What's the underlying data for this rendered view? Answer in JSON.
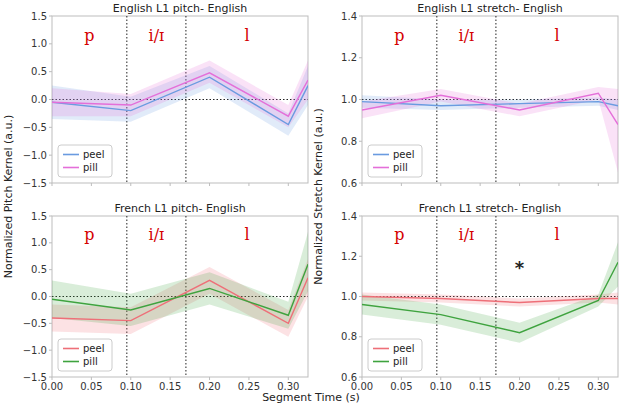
{
  "chart_data": [
    {
      "type": "line",
      "title": "English L1 pitch- English",
      "ylabel": "Normalized Pitch Kernel (a.u.)",
      "x": [
        0,
        0.1,
        0.2,
        0.3,
        0.325
      ],
      "xlim": [
        0,
        0.325
      ],
      "xticks": [
        {
          "value": 0,
          "label": "0.00"
        },
        0.05,
        {
          "value": 0.1,
          "label": "0.10"
        },
        0.15,
        {
          "value": 0.2,
          "label": "0.20"
        },
        0.25,
        {
          "value": 0.3,
          "label": "0.30"
        }
      ],
      "ylim": [
        -1.5,
        1.5
      ],
      "yticks": [
        {
          "value": -1.5,
          "label": "−1.5"
        },
        {
          "value": -1,
          "label": "−1.0"
        },
        {
          "value": -0.5,
          "label": "−0.5"
        },
        {
          "value": 0,
          "label": "0.0"
        },
        0.5,
        {
          "value": 1,
          "label": "1.0"
        },
        1.5
      ],
      "tick_labels": "y",
      "grid": false,
      "legend": "lower left",
      "reference_line": 0,
      "segments": {
        "boundaries": [
          0.095,
          0.17
        ],
        "labels": [
          "p",
          "i/ɪ",
          "l"
        ]
      },
      "series": [
        {
          "name": "peel",
          "color": "#6a9be0",
          "values": [
            -0.05,
            -0.2,
            0.4,
            -0.45,
            0.25
          ],
          "lower": [
            -0.35,
            -0.4,
            0.2,
            -0.65,
            -0.1
          ],
          "upper": [
            0.25,
            0.05,
            0.6,
            -0.25,
            0.6
          ]
        },
        {
          "name": "pill",
          "color": "#e46fd9",
          "values": [
            -0.05,
            -0.1,
            0.48,
            -0.3,
            0.35
          ],
          "lower": [
            -0.3,
            -0.3,
            0.3,
            -0.5,
            0.0
          ],
          "upper": [
            0.2,
            0.1,
            0.7,
            -0.1,
            0.7
          ]
        }
      ]
    },
    {
      "type": "line",
      "title": "English L1 stretch- English",
      "ylabel": "Normalized Stretch Kernel (a.u.)",
      "x": [
        0,
        0.1,
        0.2,
        0.3,
        0.325
      ],
      "xlim": [
        0,
        0.325
      ],
      "xticks": [
        {
          "value": 0,
          "label": "0.00"
        },
        0.05,
        {
          "value": 0.1,
          "label": "0.10"
        },
        0.15,
        {
          "value": 0.2,
          "label": "0.20"
        },
        0.25,
        {
          "value": 0.3,
          "label": "0.30"
        }
      ],
      "ylim": [
        0.6,
        1.4
      ],
      "yticks": [
        0.6,
        0.8,
        {
          "value": 1,
          "label": "1.0"
        },
        1.2,
        1.4
      ],
      "tick_labels": "y",
      "grid": false,
      "legend": "lower left",
      "reference_line": 1,
      "segments": {
        "boundaries": [
          0.095,
          0.17
        ],
        "labels": [
          "p",
          "i/ɪ",
          "l"
        ]
      },
      "series": [
        {
          "name": "peel",
          "color": "#6a9be0",
          "values": [
            0.99,
            0.97,
            0.98,
            0.99,
            0.97
          ],
          "lower": [
            0.96,
            0.95,
            0.96,
            0.97,
            0.95
          ],
          "upper": [
            1.02,
            1.0,
            1.0,
            1.01,
            1.0
          ]
        },
        {
          "name": "pill",
          "color": "#e46fd9",
          "values": [
            0.95,
            1.02,
            0.95,
            1.03,
            0.88
          ],
          "lower": [
            0.91,
            0.99,
            0.92,
            1.0,
            0.65
          ],
          "upper": [
            0.99,
            1.05,
            0.98,
            1.06,
            1.05
          ]
        }
      ]
    },
    {
      "type": "line",
      "title": "French L1 pitch- English",
      "xlabel": "Segment Time (s)",
      "x": [
        0,
        0.1,
        0.2,
        0.3,
        0.325
      ],
      "xlim": [
        0,
        0.325
      ],
      "xticks": [
        {
          "value": 0,
          "label": "0.00"
        },
        0.05,
        {
          "value": 0.1,
          "label": "0.10"
        },
        0.15,
        {
          "value": 0.2,
          "label": "0.20"
        },
        0.25,
        {
          "value": 0.3,
          "label": "0.30"
        }
      ],
      "ylim": [
        -1.5,
        1.5
      ],
      "yticks": [
        {
          "value": -1.5,
          "label": "−1.5"
        },
        {
          "value": -1,
          "label": "−1.0"
        },
        {
          "value": -0.5,
          "label": "−0.5"
        },
        {
          "value": 0,
          "label": "0.0"
        },
        0.5,
        {
          "value": 1,
          "label": "1.0"
        },
        1.5
      ],
      "grid": false,
      "legend": "lower left",
      "reference_line": 0,
      "segments": {
        "boundaries": [
          0.095,
          0.17
        ],
        "labels": [
          "p",
          "i/ɪ",
          "l"
        ]
      },
      "series": [
        {
          "name": "peel",
          "color": "#ee6f78",
          "values": [
            -0.4,
            -0.45,
            0.3,
            -0.5,
            0.35
          ],
          "lower": [
            -0.65,
            -0.7,
            0.05,
            -0.75,
            0.0
          ],
          "upper": [
            -0.15,
            -0.2,
            0.55,
            -0.25,
            0.7
          ]
        },
        {
          "name": "pill",
          "color": "#3fa33f",
          "values": [
            -0.05,
            -0.25,
            0.15,
            -0.35,
            0.6
          ],
          "lower": [
            -0.4,
            -0.55,
            -0.15,
            -0.6,
            0.1
          ],
          "upper": [
            0.3,
            0.05,
            0.45,
            -0.1,
            1.2
          ]
        }
      ]
    },
    {
      "type": "line",
      "title": "French L1 stretch- English",
      "x": [
        0,
        0.1,
        0.2,
        0.3,
        0.325
      ],
      "xlim": [
        0,
        0.325
      ],
      "xticks": [
        {
          "value": 0,
          "label": "0.00"
        },
        0.05,
        {
          "value": 0.1,
          "label": "0.10"
        },
        0.15,
        {
          "value": 0.2,
          "label": "0.20"
        },
        0.25,
        {
          "value": 0.3,
          "label": "0.30"
        }
      ],
      "ylim": [
        0.6,
        1.4
      ],
      "yticks": [
        0.6,
        0.8,
        {
          "value": 1,
          "label": "1.0"
        },
        1.2,
        1.4
      ],
      "grid": false,
      "legend": "lower left",
      "reference_line": 1,
      "segments": {
        "boundaries": [
          0.095,
          0.17
        ],
        "labels": [
          "p",
          "i/ɪ",
          "l"
        ]
      },
      "annotations": [
        {
          "text": "*",
          "x": 0.2,
          "y": 1.15
        }
      ],
      "series": [
        {
          "name": "peel",
          "color": "#ee6f78",
          "values": [
            1.0,
            0.99,
            0.97,
            0.99,
            0.99
          ],
          "lower": [
            0.98,
            0.97,
            0.95,
            0.97,
            0.96
          ],
          "upper": [
            1.02,
            1.01,
            0.99,
            1.01,
            1.02
          ]
        },
        {
          "name": "pill",
          "color": "#3fa33f",
          "values": [
            0.96,
            0.91,
            0.82,
            0.98,
            1.17
          ],
          "lower": [
            0.91,
            0.86,
            0.77,
            0.95,
            1.05
          ],
          "upper": [
            1.01,
            0.96,
            0.87,
            1.01,
            1.27
          ]
        }
      ]
    }
  ]
}
